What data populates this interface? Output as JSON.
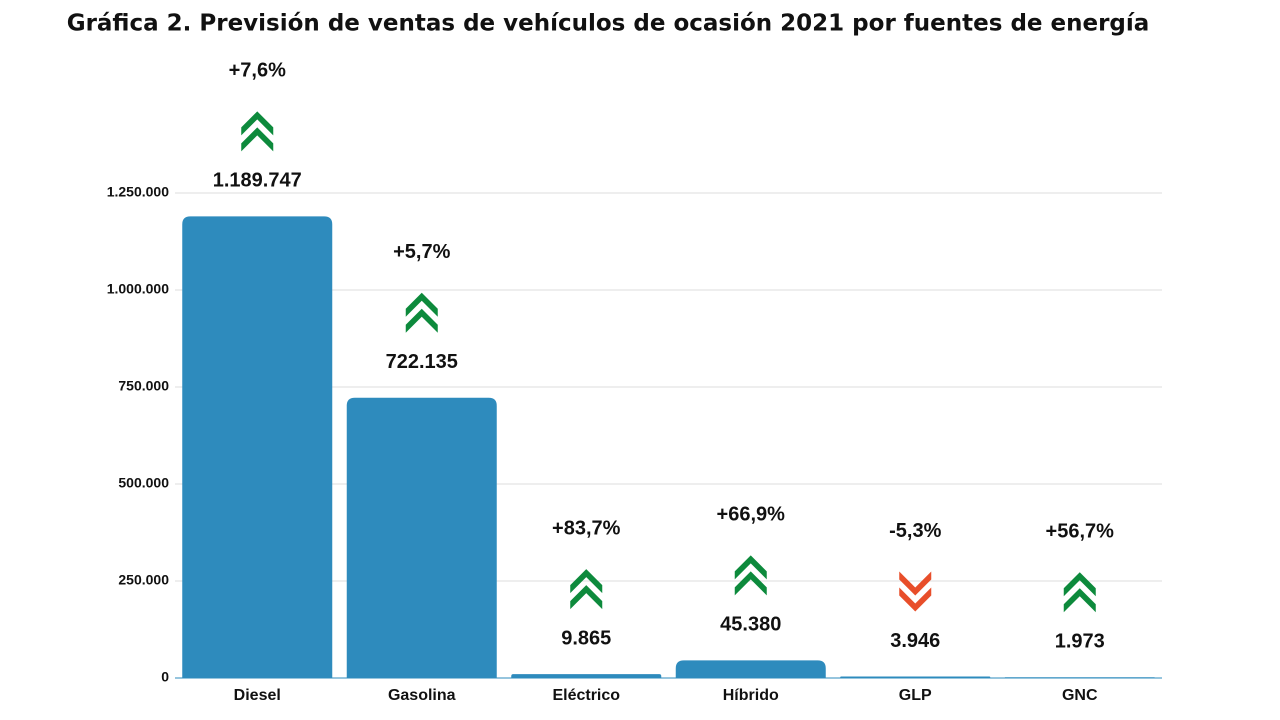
{
  "chart_data": {
    "type": "bar",
    "title": "Gráfica 2. Previsión de ventas de vehículos de ocasión 2021 por fuentes de energía",
    "categories": [
      "Diesel",
      "Gasolina",
      "Eléctrico",
      "Híbrido",
      "GLP",
      "GNC"
    ],
    "values": [
      1189747,
      722135,
      9865,
      45380,
      3946,
      1973
    ],
    "value_labels": [
      "1.189.747",
      "722.135",
      "9.865",
      "45.380",
      "3.946",
      "1.973"
    ],
    "changes": [
      {
        "value": 7.6,
        "label": "+7,6%"
      },
      {
        "value": 5.7,
        "label": "+5,7%"
      },
      {
        "value": 83.7,
        "label": "+83,7%"
      },
      {
        "value": 66.9,
        "label": "+66,9%"
      },
      {
        "value": -5.3,
        "label": "-5,3%"
      },
      {
        "value": 56.7,
        "label": "+56,7%"
      }
    ],
    "color": "#2e8bbd",
    "up_color": "#0d8a3c",
    "down_color": "#e84e2a",
    "ylim": [
      0,
      1250000
    ],
    "yticks": [
      {
        "value": 0,
        "label": "0"
      },
      {
        "value": 250000,
        "label": "250.000"
      },
      {
        "value": 500000,
        "label": "500.000"
      },
      {
        "value": 750000,
        "label": "750.000"
      },
      {
        "value": 1000000,
        "label": "1.000.000"
      },
      {
        "value": 1250000,
        "label": "1.250.000"
      }
    ],
    "grid": true
  }
}
